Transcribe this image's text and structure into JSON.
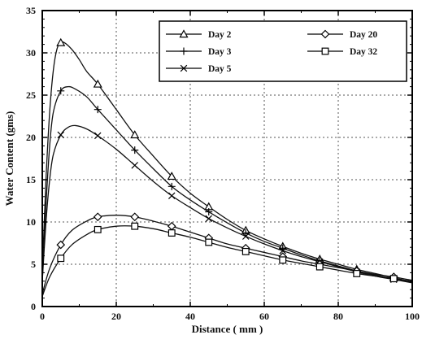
{
  "chart_data": {
    "type": "line",
    "xlabel": "Distance ( mm )",
    "ylabel": "Water Content (gms)",
    "xlim": [
      0,
      100
    ],
    "ylim": [
      0,
      35
    ],
    "xticks": [
      0,
      20,
      40,
      60,
      80,
      100
    ],
    "yticks": [
      0,
      5,
      10,
      15,
      20,
      25,
      30,
      35
    ],
    "grid": true,
    "legend_position": "top-right",
    "series": [
      {
        "name": "Day 2",
        "marker": "triangle",
        "curve": [
          [
            0,
            4
          ],
          [
            1,
            15
          ],
          [
            2,
            23
          ],
          [
            3,
            28
          ],
          [
            4,
            30.5
          ],
          [
            5,
            31.2
          ],
          [
            6,
            31.2
          ],
          [
            8,
            30.4
          ],
          [
            10,
            29.2
          ],
          [
            12,
            27.8
          ],
          [
            15,
            26.3
          ],
          [
            20,
            23.3
          ],
          [
            25,
            20.3
          ],
          [
            30,
            17.8
          ],
          [
            35,
            15.4
          ],
          [
            40,
            13.4
          ],
          [
            45,
            11.8
          ],
          [
            50,
            10.3
          ],
          [
            55,
            9.0
          ],
          [
            60,
            8.0
          ],
          [
            65,
            7.1
          ],
          [
            70,
            6.3
          ],
          [
            75,
            5.6
          ],
          [
            80,
            5.0
          ],
          [
            85,
            4.4
          ],
          [
            90,
            3.9
          ],
          [
            95,
            3.4
          ],
          [
            100,
            2.9
          ]
        ],
        "markers": [
          [
            5,
            31.2
          ],
          [
            15,
            26.3
          ],
          [
            25,
            20.3
          ],
          [
            35,
            15.4
          ],
          [
            45,
            11.8
          ],
          [
            55,
            9.0
          ],
          [
            65,
            7.1
          ],
          [
            75,
            5.6
          ],
          [
            85,
            4.4
          ],
          [
            95,
            3.4
          ]
        ]
      },
      {
        "name": "Day 3",
        "marker": "plus",
        "curve": [
          [
            0,
            3
          ],
          [
            1,
            12
          ],
          [
            2,
            19
          ],
          [
            3,
            23
          ],
          [
            5,
            25.5
          ],
          [
            7,
            26
          ],
          [
            9,
            25.7
          ],
          [
            12,
            24.8
          ],
          [
            15,
            23.3
          ],
          [
            20,
            20.9
          ],
          [
            25,
            18.5
          ],
          [
            30,
            16.3
          ],
          [
            35,
            14.2
          ],
          [
            40,
            12.6
          ],
          [
            45,
            11.2
          ],
          [
            50,
            9.9
          ],
          [
            55,
            8.7
          ],
          [
            60,
            7.7
          ],
          [
            65,
            6.9
          ],
          [
            70,
            6.1
          ],
          [
            75,
            5.4
          ],
          [
            80,
            4.8
          ],
          [
            85,
            4.2
          ],
          [
            90,
            3.7
          ],
          [
            95,
            3.3
          ],
          [
            100,
            2.9
          ]
        ],
        "markers": [
          [
            5,
            25.5
          ],
          [
            15,
            23.3
          ],
          [
            25,
            18.5
          ],
          [
            35,
            14.2
          ],
          [
            45,
            11.2
          ],
          [
            55,
            8.7
          ],
          [
            65,
            6.9
          ],
          [
            75,
            5.4
          ],
          [
            85,
            4.2
          ],
          [
            95,
            3.3
          ]
        ]
      },
      {
        "name": "Day 5",
        "marker": "x",
        "curve": [
          [
            0,
            3
          ],
          [
            1,
            10
          ],
          [
            2,
            15
          ],
          [
            3,
            18
          ],
          [
            5,
            20.3
          ],
          [
            7,
            21.2
          ],
          [
            9,
            21.4
          ],
          [
            12,
            21
          ],
          [
            15,
            20.2
          ],
          [
            20,
            18.6
          ],
          [
            25,
            16.7
          ],
          [
            30,
            14.8
          ],
          [
            35,
            13.1
          ],
          [
            40,
            11.7
          ],
          [
            45,
            10.4
          ],
          [
            50,
            9.3
          ],
          [
            55,
            8.3
          ],
          [
            60,
            7.4
          ],
          [
            65,
            6.6
          ],
          [
            70,
            5.9
          ],
          [
            75,
            5.3
          ],
          [
            80,
            4.7
          ],
          [
            85,
            4.1
          ],
          [
            90,
            3.6
          ],
          [
            95,
            3.2
          ],
          [
            100,
            2.8
          ]
        ],
        "markers": [
          [
            5,
            20.3
          ],
          [
            15,
            20.2
          ],
          [
            25,
            16.7
          ],
          [
            35,
            13.1
          ],
          [
            45,
            10.4
          ],
          [
            55,
            8.3
          ],
          [
            65,
            6.6
          ],
          [
            75,
            5.3
          ],
          [
            85,
            4.1
          ],
          [
            95,
            3.2
          ]
        ]
      },
      {
        "name": "Day 20",
        "marker": "diamond",
        "curve": [
          [
            0,
            1.5
          ],
          [
            2,
            4.5
          ],
          [
            5,
            7.3
          ],
          [
            8,
            9
          ],
          [
            12,
            10.1
          ],
          [
            15,
            10.6
          ],
          [
            20,
            10.8
          ],
          [
            25,
            10.6
          ],
          [
            30,
            10.1
          ],
          [
            35,
            9.5
          ],
          [
            40,
            8.8
          ],
          [
            45,
            8.1
          ],
          [
            50,
            7.4
          ],
          [
            55,
            6.9
          ],
          [
            60,
            6.4
          ],
          [
            65,
            5.9
          ],
          [
            70,
            5.4
          ],
          [
            75,
            5.0
          ],
          [
            80,
            4.6
          ],
          [
            85,
            4.2
          ],
          [
            90,
            3.8
          ],
          [
            95,
            3.5
          ],
          [
            100,
            3.1
          ]
        ],
        "markers": [
          [
            5,
            7.3
          ],
          [
            15,
            10.6
          ],
          [
            25,
            10.6
          ],
          [
            35,
            9.5
          ],
          [
            45,
            8.1
          ],
          [
            55,
            6.9
          ],
          [
            65,
            5.9
          ],
          [
            75,
            5.0
          ],
          [
            85,
            4.2
          ],
          [
            95,
            3.5
          ]
        ]
      },
      {
        "name": "Day 32",
        "marker": "square",
        "curve": [
          [
            0,
            1.2
          ],
          [
            2,
            3.5
          ],
          [
            5,
            5.7
          ],
          [
            8,
            7.3
          ],
          [
            12,
            8.5
          ],
          [
            15,
            9.1
          ],
          [
            20,
            9.5
          ],
          [
            25,
            9.5
          ],
          [
            30,
            9.2
          ],
          [
            35,
            8.7
          ],
          [
            40,
            8.2
          ],
          [
            45,
            7.6
          ],
          [
            50,
            7.0
          ],
          [
            55,
            6.5
          ],
          [
            60,
            6.0
          ],
          [
            65,
            5.5
          ],
          [
            70,
            5.1
          ],
          [
            75,
            4.7
          ],
          [
            80,
            4.3
          ],
          [
            85,
            3.9
          ],
          [
            90,
            3.6
          ],
          [
            95,
            3.3
          ],
          [
            100,
            3.0
          ]
        ],
        "markers": [
          [
            5,
            5.7
          ],
          [
            15,
            9.1
          ],
          [
            25,
            9.5
          ],
          [
            35,
            8.7
          ],
          [
            45,
            7.6
          ],
          [
            55,
            6.5
          ],
          [
            65,
            5.5
          ],
          [
            75,
            4.7
          ],
          [
            85,
            3.9
          ],
          [
            95,
            3.3
          ]
        ]
      }
    ],
    "legend_layout": [
      {
        "series": "Day 2",
        "col": 0,
        "row": 0
      },
      {
        "series": "Day 3",
        "col": 0,
        "row": 1
      },
      {
        "series": "Day 5",
        "col": 0,
        "row": 2
      },
      {
        "series": "Day 20",
        "col": 1,
        "row": 0
      },
      {
        "series": "Day 32",
        "col": 1,
        "row": 1
      }
    ]
  }
}
